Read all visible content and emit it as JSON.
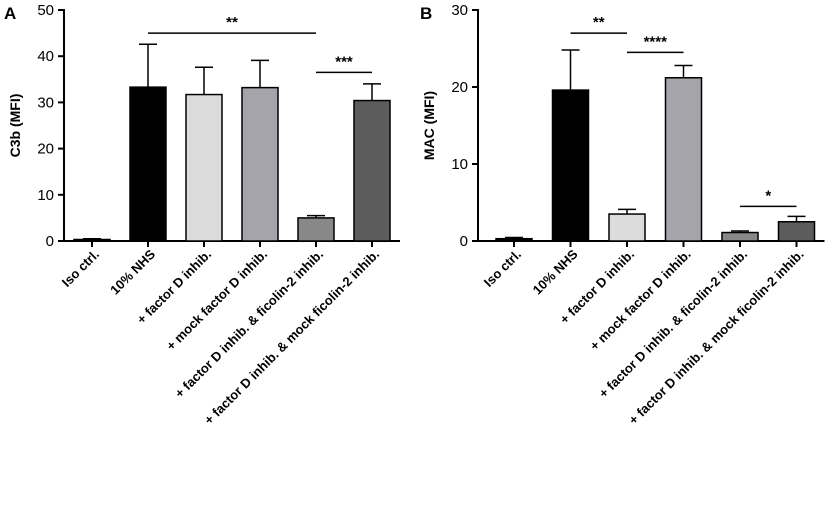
{
  "chart_data": [
    {
      "type": "bar",
      "panel": "A",
      "ylabel": "C3b (MFI)",
      "ylim": [
        0,
        50
      ],
      "yticks": [
        "0",
        "10",
        "20",
        "30",
        "40",
        "50"
      ],
      "categories": [
        "Iso ctrl.",
        "10% NHS",
        "+ factor D inhib.",
        "+ mock factor D inhib.",
        "+ factor D inhib. & ficolin-2 inhib.",
        "+ factor D inhib. & mock ficolin-2 inhib."
      ],
      "values": [
        0.3,
        33.3,
        31.7,
        33.2,
        5.0,
        30.4
      ],
      "errors": [
        0.2,
        9.3,
        5.9,
        5.9,
        0.5,
        3.6
      ],
      "colors": [
        "#000000",
        "#000000",
        "#dcdcdc",
        "#a4a4aa",
        "#888888",
        "#5c5c5c"
      ],
      "significance": [
        {
          "from": 1,
          "to": 4,
          "y": 45,
          "label": "**"
        },
        {
          "from": 4,
          "to": 5,
          "y": 36.5,
          "label": "***"
        }
      ]
    },
    {
      "type": "bar",
      "panel": "B",
      "ylabel": "MAC (MFI)",
      "ylim": [
        0,
        30
      ],
      "yticks": [
        "0",
        "10",
        "20",
        "30"
      ],
      "categories": [
        "Iso ctrl.",
        "10% NHS",
        "+ factor D inhib.",
        "+ mock factor D inhib.",
        "+ factor D inhib. & ficolin-2 inhib.",
        "+ factor D inhib. & mock ficolin-2 inhib."
      ],
      "values": [
        0.3,
        19.6,
        3.5,
        21.2,
        1.1,
        2.5
      ],
      "errors": [
        0.15,
        5.2,
        0.6,
        1.6,
        0.2,
        0.7
      ],
      "colors": [
        "#000000",
        "#000000",
        "#dcdcdc",
        "#a4a4aa",
        "#888888",
        "#5c5c5c"
      ],
      "significance": [
        {
          "from": 1,
          "to": 2,
          "y": 27,
          "label": "**"
        },
        {
          "from": 2,
          "to": 3,
          "y": 24.5,
          "label": "****"
        },
        {
          "from": 4,
          "to": 5,
          "y": 4.5,
          "label": "*"
        }
      ]
    }
  ]
}
